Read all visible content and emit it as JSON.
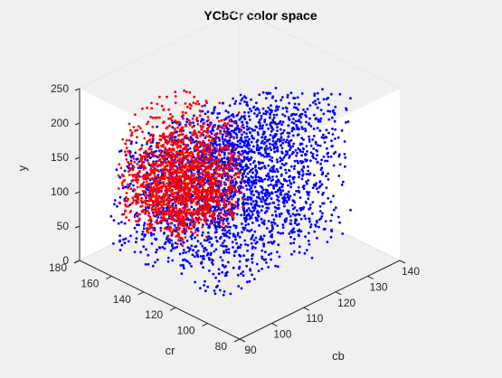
{
  "chart_data": {
    "type": "scatter",
    "subtype": "scatter3d",
    "title": "YCbCr color space",
    "xlabel": "cb",
    "ylabel": "cr",
    "zlabel": "y",
    "xlim": [
      90,
      140
    ],
    "ylim": [
      80,
      180
    ],
    "zlim": [
      0,
      250
    ],
    "xticks": [
      "90",
      "100",
      "110",
      "120",
      "130",
      "140"
    ],
    "yticks": [
      "80",
      "100",
      "120",
      "140",
      "160",
      "180"
    ],
    "zticks": [
      "0",
      "50",
      "100",
      "150",
      "200",
      "250"
    ],
    "grid": false,
    "series": [
      {
        "color": "#0000ff",
        "cb_range": [
          95,
          136
        ],
        "cr_range": [
          100,
          172
        ],
        "y_range": [
          15,
          240
        ]
      },
      {
        "color": "#ff0000",
        "cb_range": [
          99,
          120
        ],
        "cr_range": [
          136,
          175
        ],
        "y_range": [
          40,
          200
        ]
      }
    ]
  }
}
